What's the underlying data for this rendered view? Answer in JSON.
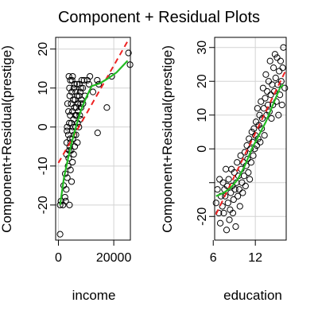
{
  "chart_data": {
    "title": "Component + Residual Plots",
    "colors": {
      "smooth": "#22bb22",
      "fit": "#ee2222",
      "points": "#000000",
      "grid": "#d3d3d3"
    },
    "panels": [
      {
        "type": "scatter",
        "xlabel": "income",
        "ylabel": "Component+Residual(prestige)",
        "xlim": [
          -1000,
          26000
        ],
        "ylim": [
          -29,
          23
        ],
        "xticks": [
          0,
          20000
        ],
        "xtick_labels": [
          "0",
          "20000"
        ],
        "yticks": [
          -20,
          -10,
          0,
          10,
          20
        ],
        "ytick_labels": [
          "-20",
          "-10",
          "0",
          "10",
          "20"
        ],
        "grid": true,
        "fit_line": {
          "style": "dashed",
          "x": [
            0,
            25000
          ],
          "y": [
            -9.2,
            22
          ]
        },
        "smooth_line": {
          "style": "solid",
          "x": [
            600,
            2000,
            3500,
            5000,
            6500,
            8000,
            10000,
            12000,
            15000,
            18000,
            21000,
            25000
          ],
          "y": [
            -20,
            -13,
            -8,
            -3.5,
            0.5,
            4,
            7.5,
            10.5,
            11.2,
            12.5,
            14,
            17
          ]
        },
        "points": [
          [
            600,
            -27.5
          ],
          [
            611,
            -20
          ],
          [
            918,
            -19
          ],
          [
            1656,
            -20
          ],
          [
            1890,
            -15
          ],
          [
            2370,
            -18
          ],
          [
            2448,
            -12
          ],
          [
            2594,
            -19
          ],
          [
            2847,
            -16
          ],
          [
            2901,
            -7
          ],
          [
            3000,
            -4
          ],
          [
            3100,
            -1
          ],
          [
            3148,
            0
          ],
          [
            3199,
            -13
          ],
          [
            3300,
            6
          ],
          [
            3485,
            -10
          ],
          [
            3582,
            -2
          ],
          [
            3643,
            4
          ],
          [
            3710,
            -8
          ],
          [
            3779,
            13
          ],
          [
            3900,
            -6
          ],
          [
            3930,
            1
          ],
          [
            3990,
            10
          ],
          [
            4000,
            -20
          ],
          [
            4075,
            -5
          ],
          [
            4100,
            8
          ],
          [
            4199,
            -3
          ],
          [
            4251,
            3
          ],
          [
            4300,
            12
          ],
          [
            4367,
            -11
          ],
          [
            4443,
            -4
          ],
          [
            4549,
            -6
          ],
          [
            4614,
            6
          ],
          [
            4686,
            1
          ],
          [
            4753,
            -14
          ],
          [
            4816,
            9
          ],
          [
            4924,
            12
          ],
          [
            5000,
            -1
          ],
          [
            5052,
            4
          ],
          [
            5092,
            -9
          ],
          [
            5134,
            13
          ],
          [
            5180,
            -3
          ],
          [
            5299,
            0
          ],
          [
            5347,
            7
          ],
          [
            5449,
            2
          ],
          [
            5511,
            -7
          ],
          [
            5593,
            10
          ],
          [
            5648,
            -2
          ],
          [
            5795,
            5
          ],
          [
            5830,
            11
          ],
          [
            5902,
            -5
          ],
          [
            6000,
            7
          ],
          [
            6112,
            3
          ],
          [
            6197,
            0
          ],
          [
            6259,
            9
          ],
          [
            6336,
            -2
          ],
          [
            6462,
            5
          ],
          [
            6565,
            3
          ],
          [
            6686,
            11
          ],
          [
            6747,
            8
          ],
          [
            6860,
            -4
          ],
          [
            6928,
            1
          ],
          [
            7059,
            6
          ],
          [
            7147,
            4
          ],
          [
            7405,
            0
          ],
          [
            7482,
            8
          ],
          [
            7559,
            11
          ],
          [
            7716,
            3
          ],
          [
            7869,
            9
          ],
          [
            7956,
            2
          ],
          [
            8034,
            6
          ],
          [
            8131,
            10
          ],
          [
            8206,
            5
          ],
          [
            8316,
            7
          ],
          [
            8425,
            12
          ],
          [
            8780,
            10
          ],
          [
            8865,
            6
          ],
          [
            9271,
            12
          ],
          [
            9593,
            8
          ],
          [
            10432,
            12
          ],
          [
            11030,
            11
          ],
          [
            11377,
            13
          ],
          [
            12480,
            9
          ],
          [
            14032,
            12
          ],
          [
            14163,
            -1.5
          ],
          [
            14558,
            11
          ],
          [
            17498,
            5
          ],
          [
            19263,
            13
          ],
          [
            25308,
            19
          ],
          [
            25879,
            16
          ]
        ]
      },
      {
        "type": "scatter",
        "xlabel": "education",
        "ylabel": "Component+Residual(prestige)",
        "xlim": [
          6.2,
          16.4
        ],
        "ylim": [
          -27,
          33
        ],
        "xticks": [
          6,
          12
        ],
        "xtick_labels": [
          "6",
          "12"
        ],
        "yticks": [
          -20,
          -10,
          0,
          10,
          20,
          30
        ],
        "ytick_labels": [
          "-20",
          "",
          "0",
          "10",
          "20",
          "30"
        ],
        "grid": true,
        "fit_line": {
          "style": "dashed",
          "x": [
            6.38,
            16.4
          ],
          "y": [
            -19.4,
            23.5
          ]
        },
        "smooth_line": {
          "style": "solid",
          "x": [
            6.4,
            7.5,
            8.5,
            9.5,
            10.5,
            11.5,
            12.5,
            13.5,
            14.5,
            15.5,
            16.0
          ],
          "y": [
            -14,
            -13,
            -11.5,
            -9,
            -5,
            0,
            4,
            8,
            13,
            18,
            19
          ]
        },
        "points": [
          [
            6.4,
            -16
          ],
          [
            6.6,
            -12
          ],
          [
            6.8,
            -19
          ],
          [
            6.9,
            -9
          ],
          [
            7.0,
            -22
          ],
          [
            7.1,
            -14
          ],
          [
            7.3,
            -17
          ],
          [
            7.4,
            -10
          ],
          [
            7.5,
            -19
          ],
          [
            7.6,
            -12
          ],
          [
            7.7,
            -14
          ],
          [
            7.8,
            -6
          ],
          [
            7.9,
            -24
          ],
          [
            8.0,
            -11
          ],
          [
            8.1,
            -16
          ],
          [
            8.2,
            -9
          ],
          [
            8.3,
            -21
          ],
          [
            8.4,
            -18
          ],
          [
            8.5,
            -13
          ],
          [
            8.6,
            -6
          ],
          [
            8.7,
            -11
          ],
          [
            8.8,
            -19
          ],
          [
            8.9,
            -15
          ],
          [
            9.0,
            -7
          ],
          [
            9.1,
            -12
          ],
          [
            9.2,
            -23
          ],
          [
            9.3,
            -10
          ],
          [
            9.4,
            -4
          ],
          [
            9.5,
            -14
          ],
          [
            9.6,
            -8
          ],
          [
            9.7,
            -12
          ],
          [
            9.8,
            -17
          ],
          [
            9.9,
            -2
          ],
          [
            10.0,
            -6
          ],
          [
            10.1,
            -10
          ],
          [
            10.2,
            -13
          ],
          [
            10.3,
            -4
          ],
          [
            10.4,
            -8
          ],
          [
            10.5,
            -1
          ],
          [
            10.6,
            -11
          ],
          [
            10.7,
            -5
          ],
          [
            10.8,
            1
          ],
          [
            10.9,
            -3
          ],
          [
            11.0,
            -7
          ],
          [
            11.1,
            3
          ],
          [
            11.2,
            -9
          ],
          [
            11.3,
            0
          ],
          [
            11.4,
            -4
          ],
          [
            11.5,
            5
          ],
          [
            11.6,
            2
          ],
          [
            11.7,
            -2
          ],
          [
            11.8,
            6
          ],
          [
            11.9,
            0
          ],
          [
            12.0,
            4
          ],
          [
            12.1,
            8
          ],
          [
            12.2,
            1
          ],
          [
            12.3,
            12
          ],
          [
            12.4,
            3
          ],
          [
            12.5,
            7
          ],
          [
            12.6,
            10
          ],
          [
            12.7,
            2
          ],
          [
            12.8,
            14
          ],
          [
            12.9,
            6
          ],
          [
            13.0,
            9
          ],
          [
            13.1,
            18
          ],
          [
            13.2,
            12
          ],
          [
            13.3,
            4
          ],
          [
            13.4,
            15
          ],
          [
            13.5,
            22
          ],
          [
            13.6,
            10
          ],
          [
            13.7,
            17
          ],
          [
            13.8,
            13
          ],
          [
            13.9,
            20
          ],
          [
            14.0,
            11
          ],
          [
            14.1,
            26
          ],
          [
            14.2,
            16
          ],
          [
            14.3,
            9
          ],
          [
            14.4,
            19
          ],
          [
            14.5,
            13
          ],
          [
            14.6,
            24
          ],
          [
            14.7,
            17
          ],
          [
            14.8,
            28
          ],
          [
            14.9,
            21
          ],
          [
            15.0,
            14
          ],
          [
            15.1,
            27
          ],
          [
            15.2,
            19
          ],
          [
            15.3,
            10
          ],
          [
            15.4,
            23
          ],
          [
            15.5,
            16
          ],
          [
            15.6,
            26
          ],
          [
            15.7,
            20
          ],
          [
            15.8,
            13
          ],
          [
            15.9,
            24
          ],
          [
            16.0,
            30
          ],
          [
            16.2,
            18
          ]
        ]
      }
    ]
  }
}
